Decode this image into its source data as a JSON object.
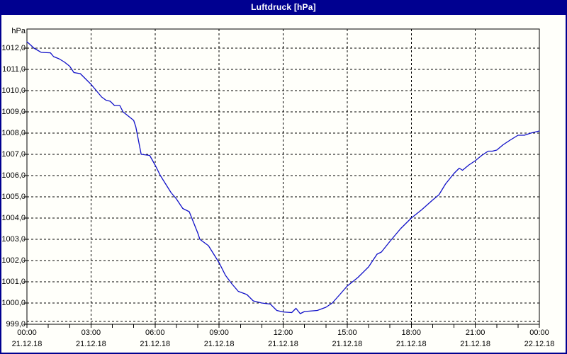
{
  "window": {
    "title": "Luftdruck [hPa]"
  },
  "colors": {
    "titlebar_bg": "#000090",
    "titlebar_text": "#ffffff",
    "frame": "#000090",
    "plot_background": "#fffffa",
    "grid": "#000000",
    "axis": "#000000",
    "label_text": "#000000",
    "line": "#1010c8"
  },
  "chart_data": {
    "type": "line",
    "title": "Luftdruck [hPa]",
    "ylabel": "hPa",
    "xlabel": "",
    "ylim": [
      999.0,
      1012.9
    ],
    "xlim_hours": [
      0,
      24
    ],
    "grid": "dashed",
    "legend": "none",
    "y_ticks": [
      {
        "value": 1012,
        "label": "1012,0"
      },
      {
        "value": 1011,
        "label": "1011,0"
      },
      {
        "value": 1010,
        "label": "1010,0"
      },
      {
        "value": 1009,
        "label": "1009,0"
      },
      {
        "value": 1008,
        "label": "1008,0"
      },
      {
        "value": 1007,
        "label": "1007,0"
      },
      {
        "value": 1006,
        "label": "1006,0"
      },
      {
        "value": 1005,
        "label": "1005,0"
      },
      {
        "value": 1004,
        "label": "1004,0"
      },
      {
        "value": 1003,
        "label": "1003,0"
      },
      {
        "value": 1002,
        "label": "1002,0"
      },
      {
        "value": 1001,
        "label": "1001,0"
      },
      {
        "value": 1000,
        "label": "1000,0"
      },
      {
        "value": 999,
        "label": "999,0"
      }
    ],
    "x_ticks": [
      {
        "hour": 0,
        "time": "00:00",
        "date": "21.12.18"
      },
      {
        "hour": 3,
        "time": "03:00",
        "date": "21.12.18"
      },
      {
        "hour": 6,
        "time": "06:00",
        "date": "21.12.18"
      },
      {
        "hour": 9,
        "time": "09:00",
        "date": "21.12.18"
      },
      {
        "hour": 12,
        "time": "12:00",
        "date": "21.12.18"
      },
      {
        "hour": 15,
        "time": "15:00",
        "date": "21.12.18"
      },
      {
        "hour": 18,
        "time": "18:00",
        "date": "21.12.18"
      },
      {
        "hour": 21,
        "time": "21:00",
        "date": "21.12.18"
      },
      {
        "hour": 24,
        "time": "00:00",
        "date": "22.12.18"
      }
    ],
    "minor_x_tick_interval_hours": 1,
    "series": [
      {
        "name": "Luftdruck",
        "unit": "hPa",
        "color": "#1010c8",
        "points": [
          [
            0.0,
            1012.3
          ],
          [
            0.17,
            1012.15
          ],
          [
            0.33,
            1012.0
          ],
          [
            0.5,
            1011.9
          ],
          [
            0.67,
            1011.8
          ],
          [
            1.1,
            1011.78
          ],
          [
            1.25,
            1011.6
          ],
          [
            1.5,
            1011.5
          ],
          [
            1.75,
            1011.35
          ],
          [
            2.0,
            1011.15
          ],
          [
            2.2,
            1010.85
          ],
          [
            2.5,
            1010.8
          ],
          [
            2.75,
            1010.55
          ],
          [
            3.0,
            1010.3
          ],
          [
            3.25,
            1010.0
          ],
          [
            3.5,
            1009.7
          ],
          [
            3.7,
            1009.55
          ],
          [
            3.9,
            1009.5
          ],
          [
            4.1,
            1009.3
          ],
          [
            4.35,
            1009.3
          ],
          [
            4.5,
            1009.0
          ],
          [
            4.75,
            1008.8
          ],
          [
            5.0,
            1008.6
          ],
          [
            5.1,
            1008.3
          ],
          [
            5.35,
            1007.0
          ],
          [
            5.75,
            1006.95
          ],
          [
            6.0,
            1006.5
          ],
          [
            6.25,
            1006.0
          ],
          [
            6.5,
            1005.6
          ],
          [
            6.75,
            1005.2
          ],
          [
            7.0,
            1004.9
          ],
          [
            7.3,
            1004.45
          ],
          [
            7.6,
            1004.3
          ],
          [
            8.0,
            1003.3
          ],
          [
            8.1,
            1003.0
          ],
          [
            8.5,
            1002.7
          ],
          [
            9.0,
            1001.9
          ],
          [
            9.3,
            1001.3
          ],
          [
            9.6,
            1000.9
          ],
          [
            9.9,
            1000.55
          ],
          [
            10.3,
            1000.4
          ],
          [
            10.6,
            1000.1
          ],
          [
            11.0,
            1000.0
          ],
          [
            11.4,
            999.95
          ],
          [
            11.7,
            999.65
          ],
          [
            12.0,
            999.58
          ],
          [
            12.4,
            999.55
          ],
          [
            12.6,
            999.75
          ],
          [
            12.8,
            999.5
          ],
          [
            13.0,
            999.6
          ],
          [
            13.6,
            999.65
          ],
          [
            14.0,
            999.8
          ],
          [
            14.3,
            1000.0
          ],
          [
            14.7,
            1000.45
          ],
          [
            15.0,
            1000.8
          ],
          [
            15.5,
            1001.2
          ],
          [
            16.0,
            1001.7
          ],
          [
            16.4,
            1002.3
          ],
          [
            16.6,
            1002.4
          ],
          [
            17.0,
            1002.9
          ],
          [
            17.5,
            1003.5
          ],
          [
            18.0,
            1004.0
          ],
          [
            18.5,
            1004.4
          ],
          [
            19.0,
            1004.85
          ],
          [
            19.3,
            1005.1
          ],
          [
            19.6,
            1005.6
          ],
          [
            20.0,
            1006.1
          ],
          [
            20.25,
            1006.35
          ],
          [
            20.4,
            1006.25
          ],
          [
            20.7,
            1006.5
          ],
          [
            21.0,
            1006.7
          ],
          [
            21.3,
            1006.95
          ],
          [
            21.6,
            1007.15
          ],
          [
            21.8,
            1007.15
          ],
          [
            22.0,
            1007.2
          ],
          [
            22.3,
            1007.45
          ],
          [
            22.6,
            1007.65
          ],
          [
            23.0,
            1007.9
          ],
          [
            23.3,
            1007.9
          ],
          [
            23.6,
            1008.0
          ],
          [
            24.0,
            1008.1
          ]
        ]
      }
    ]
  }
}
